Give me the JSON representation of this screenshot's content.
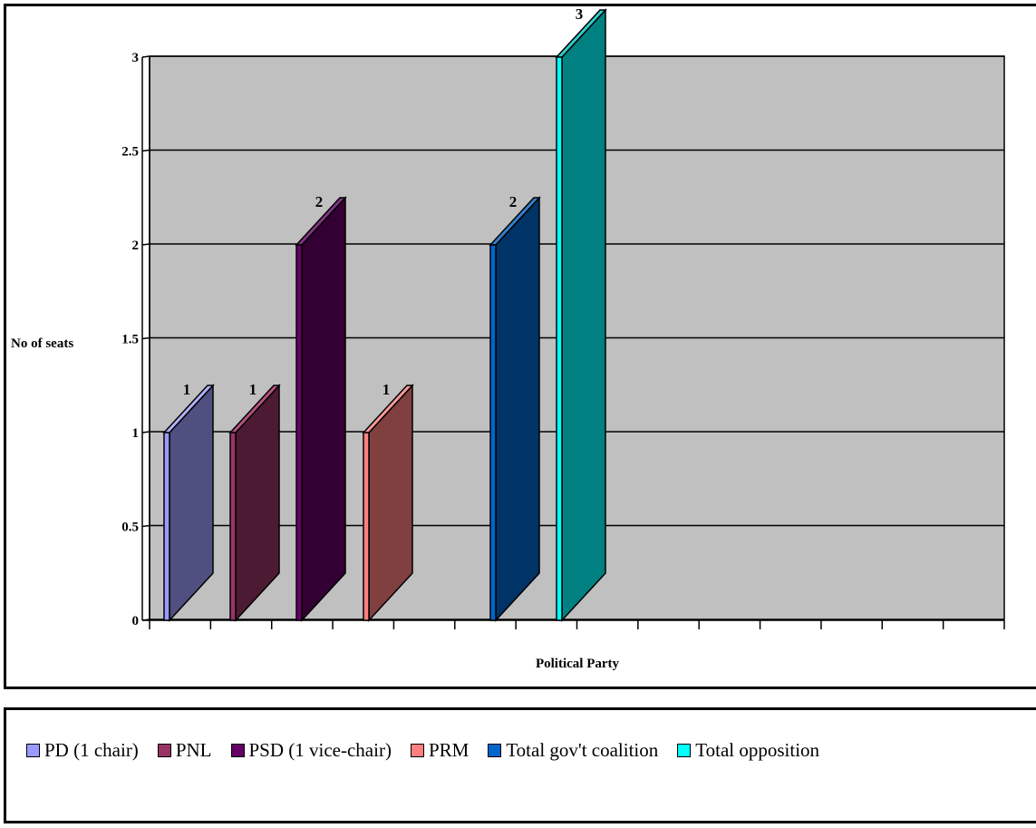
{
  "chart_data": {
    "type": "bar",
    "title": "",
    "xlabel": "Political Party",
    "ylabel": "No of seats",
    "ylim": [
      0,
      3
    ],
    "yticks": [
      "0",
      "0.5",
      "1",
      "1.5",
      "2",
      "2.5",
      "3"
    ],
    "grid": true,
    "legend_position": "bottom",
    "series": [
      {
        "name": "PD (1 chair)",
        "value": 1,
        "label": "1",
        "color": "#9999ff",
        "face": "#4f4f80",
        "top": "#b0b0ff"
      },
      {
        "name": "PNL",
        "value": 1,
        "label": "1",
        "color": "#993366",
        "face": "#4d1a33",
        "top": "#b3537d"
      },
      {
        "name": "PSD (1 vice-chair)",
        "value": 2,
        "label": "2",
        "color": "#660066",
        "face": "#330033",
        "top": "#803380"
      },
      {
        "name": "PRM",
        "value": 1,
        "label": "1",
        "color": "#ff8080",
        "face": "#804040",
        "top": "#ff9999"
      },
      {
        "name": "Total gov't coalition",
        "value": 2,
        "label": "2",
        "color": "#0066cc",
        "face": "#003366",
        "top": "#3380cc"
      },
      {
        "name": "Total opposition",
        "value": 3,
        "label": "3",
        "color": "#00ffff",
        "face": "#008080",
        "top": "#33cccc"
      }
    ]
  }
}
